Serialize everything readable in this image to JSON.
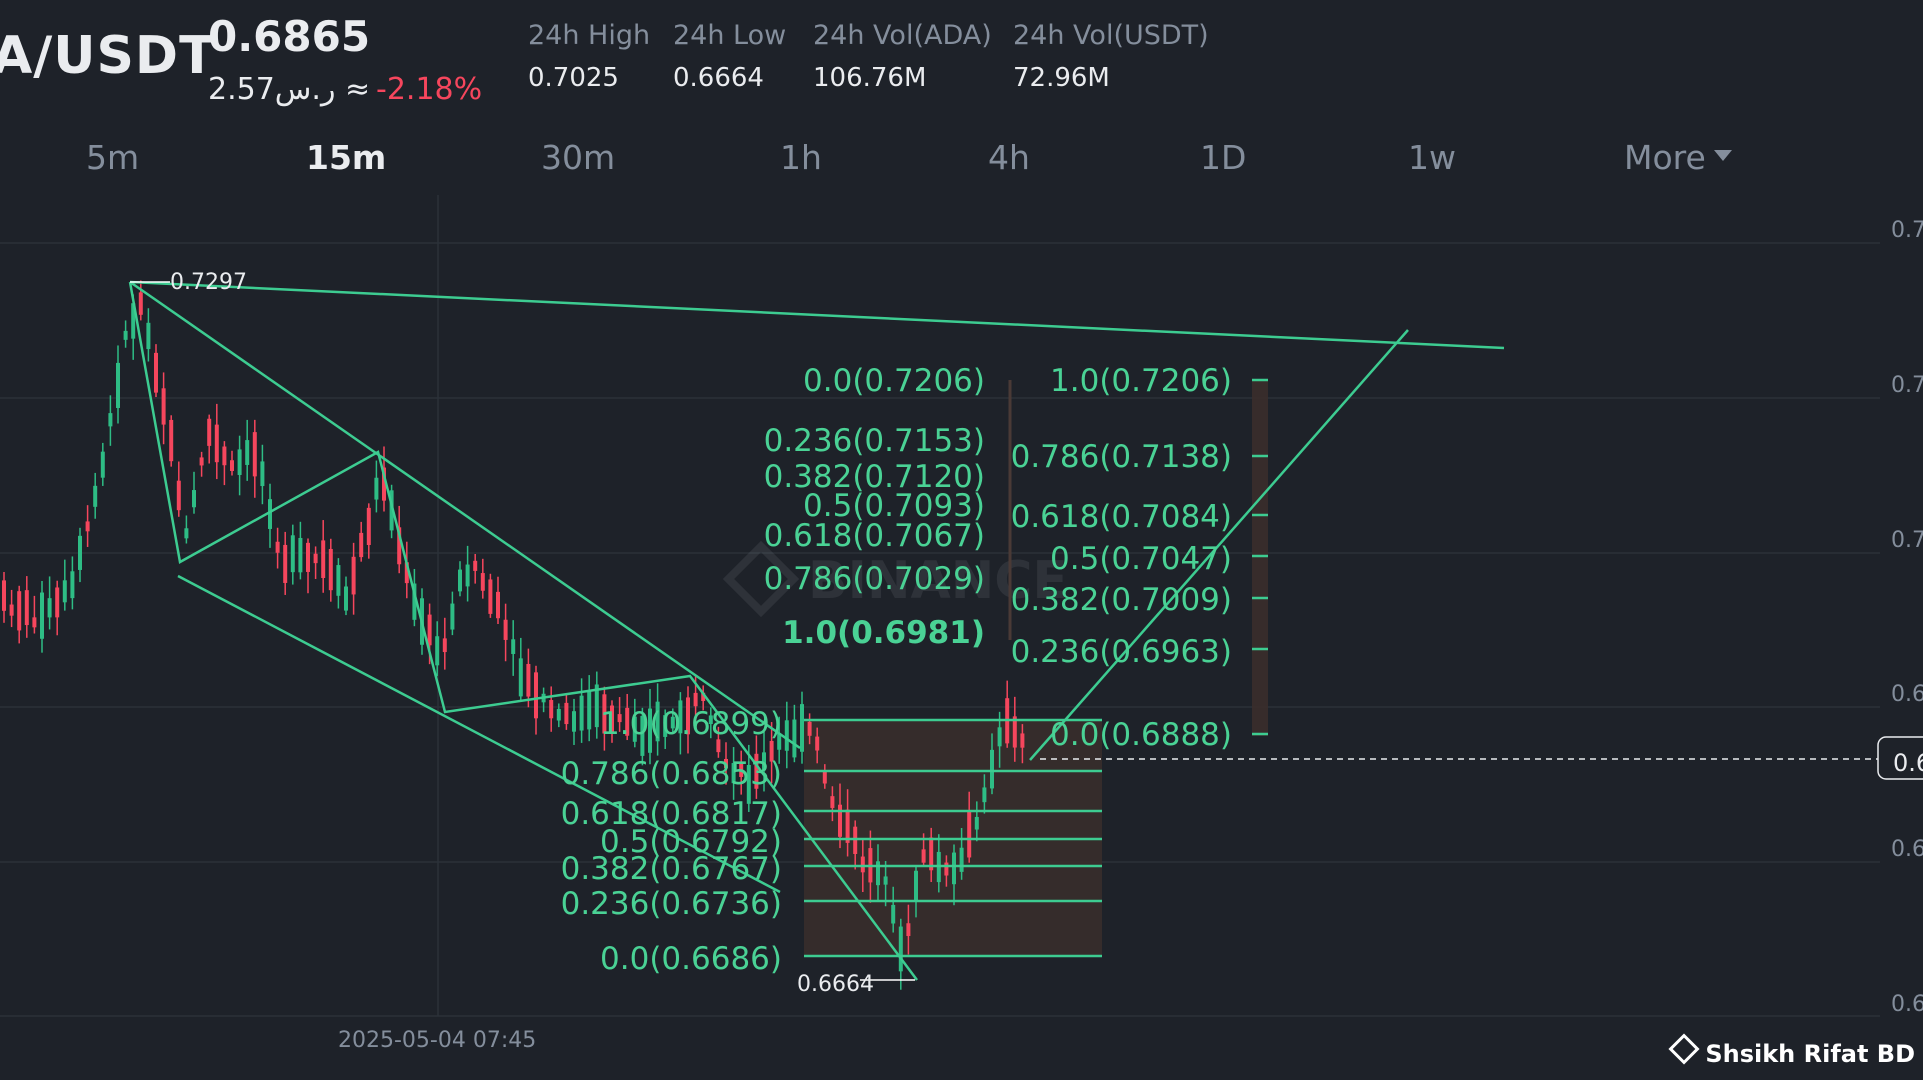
{
  "header": {
    "pair": "A/USDT",
    "price": "0.6865",
    "fiat": "2.57ر.س ≈",
    "change": "-2.18%",
    "stats": [
      {
        "label": "24h High",
        "value": "0.7025"
      },
      {
        "label": "24h Low",
        "value": "0.6664"
      },
      {
        "label": "24h Vol(ADA)",
        "value": "106.76M"
      },
      {
        "label": "24h Vol(USDT)",
        "value": "72.96M"
      }
    ]
  },
  "timeframes": [
    "5m",
    "15m",
    "30m",
    "1h",
    "4h",
    "1D",
    "1w",
    "More"
  ],
  "active_timeframe": "15m",
  "colors": {
    "background": "#1e2229",
    "up": "#2ebd85",
    "down": "#f6465d",
    "drawing": "#3dcc91",
    "fib_text": "#4ad295",
    "muted": "#848e9c"
  },
  "chart_data": {
    "type": "candlestick",
    "x_label": "2025-05-04 07:45",
    "y_tick_labels": [
      "0.7",
      "0.7",
      "0.7",
      "0.6",
      "0.6",
      "0.6"
    ],
    "current_price_tag": "0.6",
    "annotations": {
      "high": "0.7297",
      "low": "0.6664"
    },
    "watermark": "BINANCE",
    "fib_left": [
      "0.0(0.7206)",
      "0.236(0.7153)",
      "0.382(0.7120)",
      "0.5(0.7093)",
      "0.618(0.7067)",
      "0.786(0.7029)",
      "1.0(0.6981)"
    ],
    "fib_right": [
      "1.0(0.7206)",
      "0.786(0.7138)",
      "0.618(0.7084)",
      "0.5(0.7047)",
      "0.382(0.7009)",
      "0.236(0.6963)",
      "0.0(0.6888)"
    ],
    "fib_bottom": [
      "1.0(0.6899)",
      "0.786(0.6853)",
      "0.618(0.6817)",
      "0.5(0.6792)",
      "0.382(0.6767)",
      "0.236(0.6736)",
      "0.0(0.6686)"
    ]
  },
  "footer": {
    "author": "Shsikh Rifat BD"
  }
}
